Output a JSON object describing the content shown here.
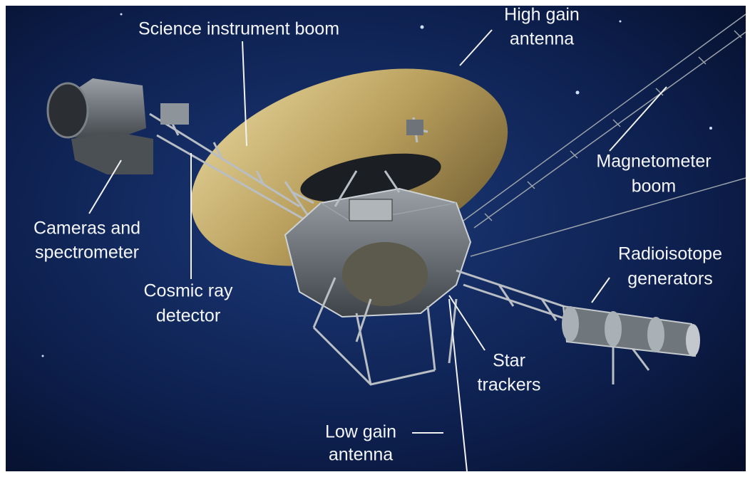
{
  "labels": [
    {
      "lines": [
        "Science instrument boom"
      ]
    },
    {
      "lines": [
        "High gain",
        "antenna"
      ]
    },
    {
      "lines": [
        "Magnetometer",
        "boom"
      ]
    },
    {
      "lines": [
        "Cameras and",
        "spectrometer"
      ]
    },
    {
      "lines": [
        "Radioisotope",
        "generators"
      ]
    },
    {
      "lines": [
        "Cosmic ray",
        "detector"
      ]
    },
    {
      "lines": [
        "Star",
        "trackers"
      ]
    },
    {
      "lines": [
        "Low gain",
        "antenna"
      ]
    }
  ]
}
